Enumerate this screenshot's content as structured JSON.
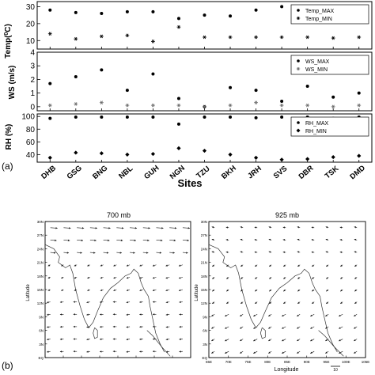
{
  "panel_a": {
    "label": "(a)",
    "xlabel": "Sites",
    "sites": [
      "DHB",
      "GSG",
      "BNG",
      "NBL",
      "GUH",
      "NGN",
      "TZU",
      "BKH",
      "JRH",
      "SVS",
      "DBR",
      "TSK",
      "DMD"
    ],
    "subplots": [
      {
        "ylabel": "Temp(",
        "ylabel_sup": "0",
        "ylabel_tail": "C)",
        "yticks": [
          "10",
          "20",
          "30"
        ],
        "ylim": [
          5,
          33
        ],
        "legend": [
          "Temp_MAX",
          "Temp_MIN"
        ]
      },
      {
        "ylabel": "WS (m/s)",
        "yticks": [
          "0",
          "1",
          "2",
          "3",
          "4"
        ],
        "ylim": [
          -0.3,
          4
        ],
        "legend": [
          "WS_MAX",
          "WS_MIN"
        ]
      },
      {
        "ylabel": "RH (%)",
        "yticks": [
          "40",
          "60",
          "80",
          "100"
        ],
        "ylim": [
          28,
          104
        ],
        "legend": [
          "RH_MAX",
          "RH_MIN"
        ]
      }
    ]
  },
  "chart_data": [
    {
      "type": "scatter",
      "categories": [
        "DHB",
        "GSG",
        "BNG",
        "NBL",
        "GUH",
        "NGN",
        "TZU",
        "BKH",
        "JRH",
        "SVS",
        "DBR",
        "TSK",
        "DMD"
      ],
      "xlabel": "Sites",
      "ylabel": "Temp(0C)",
      "ylim": [
        5,
        33
      ],
      "legend_placement": "top-right",
      "series": [
        {
          "name": "Temp_MAX",
          "values": [
            28,
            26.5,
            26,
            27,
            27,
            23,
            25,
            24.5,
            28,
            30,
            29.5,
            28.5,
            29
          ]
        },
        {
          "name": "Temp_MIN",
          "values": [
            14,
            11,
            12.5,
            13,
            9.5,
            18,
            12,
            12,
            12,
            12,
            12,
            11.5,
            12
          ]
        }
      ]
    },
    {
      "type": "scatter",
      "categories": [
        "DHB",
        "GSG",
        "BNG",
        "NBL",
        "GUH",
        "NGN",
        "TZU",
        "BKH",
        "JRH",
        "SVS",
        "DBR",
        "TSK",
        "DMD"
      ],
      "xlabel": "Sites",
      "ylabel": "WS (m/s)",
      "ylim": [
        -0.3,
        4
      ],
      "legend_placement": "top-right",
      "series": [
        {
          "name": "WS_MAX",
          "values": [
            1.7,
            2.2,
            2.7,
            1.2,
            2.4,
            0.6,
            0.0,
            1.4,
            1.2,
            0.4,
            1.5,
            0.7,
            1.0
          ]
        },
        {
          "name": "WS_MIN",
          "values": [
            0.1,
            0.2,
            0.3,
            0.1,
            0.1,
            0.1,
            0.0,
            0.1,
            0.3,
            0.1,
            0.1,
            0.0,
            0.1
          ]
        }
      ]
    },
    {
      "type": "scatter",
      "categories": [
        "DHB",
        "GSG",
        "BNG",
        "NBL",
        "GUH",
        "NGN",
        "TZU",
        "BKH",
        "JRH",
        "SVS",
        "DBR",
        "TSK",
        "DMD"
      ],
      "xlabel": "Sites",
      "ylabel": "RH (%)",
      "ylim": [
        28,
        104
      ],
      "legend_placement": "top-right",
      "series": [
        {
          "name": "RH_MAX",
          "values": [
            97,
            99,
            99,
            99,
            99,
            88,
            99,
            99,
            98,
            99,
            99,
            97,
            99
          ]
        },
        {
          "name": "RH_MIN",
          "values": [
            35,
            43,
            42,
            40,
            41,
            50,
            46,
            40,
            35,
            32,
            33,
            36,
            38
          ]
        }
      ]
    }
  ],
  "panel_b": {
    "label": "(b)",
    "maps": [
      {
        "title": "700 mb",
        "lat_ticks": [
          "30N",
          "27N",
          "24N",
          "21N",
          "18N",
          "15N",
          "12N",
          "9N",
          "6N",
          "3N",
          "EQ"
        ],
        "lon_ticks": [],
        "xlabel": "",
        "ylabel": "Latitude"
      },
      {
        "title": "925 mb",
        "lat_ticks": [
          "30N",
          "27N",
          "24N",
          "21N",
          "18N",
          "15N",
          "12N",
          "9N",
          "6N",
          "3N",
          "EQ"
        ],
        "lon_ticks": [
          "65E",
          "70E",
          "75E",
          "80E",
          "85E",
          "90E",
          "95E",
          "100E",
          "105E"
        ],
        "xlabel": "Longitude",
        "ylabel": "Latitude",
        "scale_label": "10"
      }
    ]
  },
  "colors": {
    "ink": "#000000",
    "min_marker": "#6b6b6b",
    "frame": "#000000",
    "vector": "#1a1a1a"
  }
}
